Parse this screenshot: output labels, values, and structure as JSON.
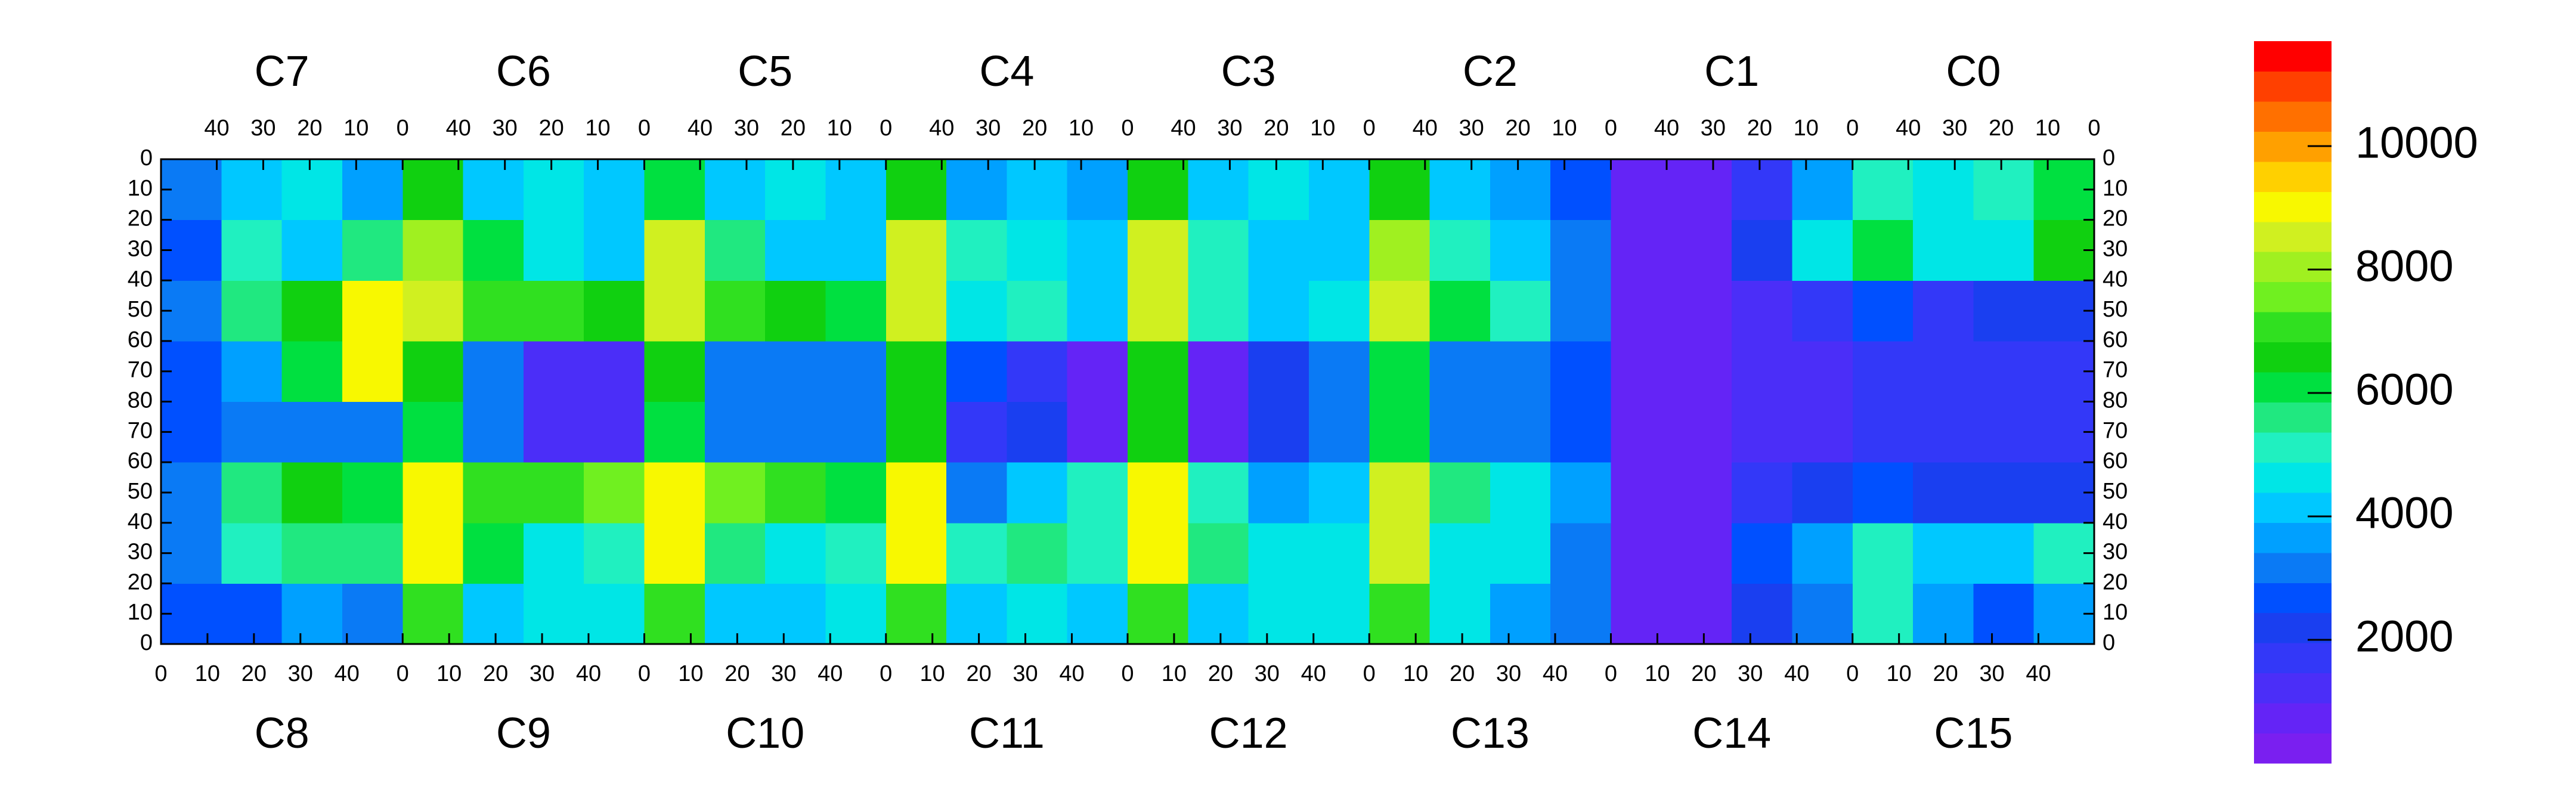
{
  "chart_data": {
    "type": "heatmap",
    "xlim": [
      0,
      416
    ],
    "ylim": [
      0,
      160
    ],
    "x_bins": [
      0,
      13,
      26,
      39,
      52,
      65,
      78,
      91,
      104,
      117,
      130,
      143,
      156,
      169,
      182,
      195,
      208,
      221,
      234,
      247,
      260,
      273,
      286,
      299,
      312,
      325,
      338,
      351,
      364,
      377,
      390,
      403,
      416
    ],
    "y_bins": [
      0,
      20,
      40,
      60,
      80,
      100,
      120,
      140,
      160
    ],
    "yticks": [
      0,
      10,
      20,
      30,
      40,
      50,
      60,
      70,
      80,
      {
        "value": 90,
        "label": "70"
      },
      {
        "value": 100,
        "label": "60"
      },
      {
        "value": 110,
        "label": "50"
      },
      {
        "value": 120,
        "label": "40"
      },
      {
        "value": 130,
        "label": "30"
      },
      {
        "value": 140,
        "label": "20"
      },
      {
        "value": 150,
        "label": "10"
      },
      {
        "value": 160,
        "label": "0"
      }
    ],
    "top_axes": [
      {
        "label": "C7",
        "xlim": [
          52,
          0
        ],
        "xticks": [
          40,
          30,
          20,
          10,
          0
        ]
      },
      {
        "label": "C6",
        "xlim": [
          52,
          0
        ],
        "xticks": [
          40,
          30,
          20,
          10,
          0
        ]
      },
      {
        "label": "C5",
        "xlim": [
          52,
          0
        ],
        "xticks": [
          40,
          30,
          20,
          10,
          0
        ]
      },
      {
        "label": "C4",
        "xlim": [
          52,
          0
        ],
        "xticks": [
          40,
          30,
          20,
          10,
          0
        ]
      },
      {
        "label": "C3",
        "xlim": [
          52,
          0
        ],
        "xticks": [
          40,
          30,
          20,
          10,
          0
        ]
      },
      {
        "label": "C2",
        "xlim": [
          52,
          0
        ],
        "xticks": [
          40,
          30,
          20,
          10,
          0
        ]
      },
      {
        "label": "C1",
        "xlim": [
          52,
          0
        ],
        "xticks": [
          40,
          30,
          20,
          10,
          0
        ]
      },
      {
        "label": "C0",
        "xlim": [
          52,
          0
        ],
        "xticks": [
          40,
          30,
          20,
          10,
          0
        ]
      }
    ],
    "bottom_axes": [
      {
        "label": "C8",
        "xlim": [
          0,
          52
        ],
        "xticks": [
          0,
          10,
          20,
          30,
          40
        ]
      },
      {
        "label": "C9",
        "xlim": [
          0,
          52
        ],
        "xticks": [
          0,
          10,
          20,
          30,
          40
        ]
      },
      {
        "label": "C10",
        "xlim": [
          0,
          52
        ],
        "xticks": [
          0,
          10,
          20,
          30,
          40
        ]
      },
      {
        "label": "C11",
        "xlim": [
          0,
          52
        ],
        "xticks": [
          0,
          10,
          20,
          30,
          40
        ]
      },
      {
        "label": "C12",
        "xlim": [
          0,
          52
        ],
        "xticks": [
          0,
          10,
          20,
          30,
          40
        ]
      },
      {
        "label": "C13",
        "xlim": [
          0,
          52
        ],
        "xticks": [
          0,
          10,
          20,
          30,
          40
        ]
      },
      {
        "label": "C14",
        "xlim": [
          0,
          52
        ],
        "xticks": [
          0,
          10,
          20,
          30,
          40
        ]
      },
      {
        "label": "C15",
        "xlim": [
          0,
          52
        ],
        "xticks": [
          0,
          10,
          20,
          30,
          40
        ]
      }
    ],
    "zlim": [
      0,
      11700
    ],
    "zticks": [
      2000,
      4000,
      6000,
      8000,
      10000
    ],
    "colors": [
      "#7a1ff0",
      "#6424f6",
      "#4b2ef8",
      "#3338f8",
      "#1a3ff0",
      "#0050ff",
      "#0a7af5",
      "#00a0ff",
      "#00c8ff",
      "#00e6e6",
      "#20f0c0",
      "#20e880",
      "#00e040",
      "#10d010",
      "#30e020",
      "#70f020",
      "#a0f020",
      "#d0f020",
      "#f8f800",
      "#ffd000",
      "#ffa000",
      "#ff7000",
      "#ff4000",
      "#ff0000"
    ],
    "z": [
      [
        2500,
        2500,
        3500,
        3000,
        7000,
        4000,
        4500,
        4500,
        7000,
        4000,
        4000,
        4500,
        7000,
        4000,
        4500,
        4000,
        7000,
        4000,
        4500,
        4500,
        7000,
        4500,
        3500,
        3000,
        500,
        500,
        2000,
        3000,
        5000,
        3500,
        2500,
        3500
      ],
      [
        3000,
        5000,
        5500,
        5500,
        9000,
        6000,
        4500,
        5000,
        9000,
        5500,
        4500,
        5000,
        9000,
        5000,
        5500,
        5000,
        9000,
        5500,
        4500,
        4500,
        8500,
        4500,
        4500,
        3000,
        500,
        500,
        2500,
        3500,
        5000,
        4000,
        4000,
        5000
      ],
      [
        3000,
        5500,
        6500,
        6000,
        9000,
        7000,
        7000,
        7500,
        9000,
        7500,
        7000,
        6000,
        9000,
        3000,
        4000,
        5000,
        9000,
        5000,
        3500,
        4000,
        8500,
        5500,
        4500,
        3500,
        500,
        500,
        1500,
        2000,
        2500,
        2000,
        2000,
        2000
      ],
      [
        2500,
        3000,
        3000,
        3000,
        6000,
        3000,
        1000,
        1000,
        6000,
        3000,
        3000,
        3000,
        6500,
        1500,
        2000,
        500,
        6500,
        500,
        2000,
        3000,
        6000,
        3000,
        3000,
        2500,
        500,
        500,
        1000,
        1000,
        1500,
        1500,
        1500,
        1500
      ],
      [
        2500,
        3500,
        6000,
        9000,
        6500,
        3000,
        1000,
        1000,
        6500,
        3000,
        3000,
        3000,
        6500,
        2500,
        1500,
        500,
        6500,
        500,
        2000,
        3000,
        6000,
        3000,
        3000,
        2500,
        500,
        500,
        1000,
        1000,
        1500,
        1500,
        1500,
        1500
      ],
      [
        3000,
        5500,
        6500,
        9000,
        8500,
        7000,
        7000,
        6500,
        8500,
        7000,
        6500,
        6000,
        8500,
        4500,
        5000,
        4000,
        8500,
        5000,
        4000,
        4500,
        8500,
        6000,
        5000,
        3000,
        500,
        500,
        1000,
        1500,
        2500,
        1500,
        2000,
        2000
      ],
      [
        2500,
        5000,
        4000,
        5500,
        8000,
        6000,
        4500,
        4000,
        8500,
        5500,
        4000,
        4000,
        8500,
        5000,
        4500,
        4000,
        8500,
        5000,
        4000,
        4000,
        8000,
        5000,
        4000,
        3000,
        500,
        500,
        2000,
        4500,
        6000,
        4500,
        4500,
        6500
      ],
      [
        3000,
        4000,
        4500,
        3500,
        6500,
        4000,
        4500,
        4000,
        6000,
        4000,
        4500,
        4000,
        6500,
        3500,
        4000,
        3500,
        6500,
        4000,
        4500,
        4000,
        6500,
        4000,
        3500,
        2500,
        500,
        500,
        1500,
        3500,
        5000,
        4500,
        5000,
        6000
      ]
    ]
  }
}
